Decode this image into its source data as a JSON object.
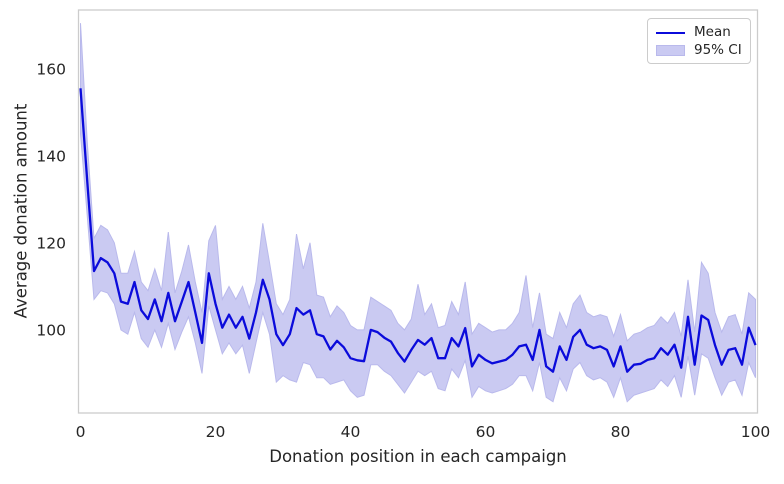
{
  "chart_data": {
    "type": "line",
    "title": "",
    "xlabel": "Donation position in each campaign",
    "ylabel": "Average donation amount",
    "xticks": [
      0,
      20,
      40,
      60,
      80,
      100
    ],
    "yticks": [
      100,
      120,
      140,
      160
    ],
    "xlim": [
      -0.3,
      100.3
    ],
    "ylim": [
      80.9,
      173.5
    ],
    "grid": false,
    "legend": {
      "position": "upper right",
      "mean_label": "Mean",
      "ci_label": "95% CI"
    },
    "colors": {
      "mean_line": "#0b0bdb",
      "ci_fill": "#cacaf2",
      "ci_edge": "#b9b9ec",
      "axis_text": "#262626",
      "spine": "#cccccc",
      "background": "#ffffff"
    },
    "x": [
      0,
      1,
      2,
      3,
      4,
      5,
      6,
      7,
      8,
      9,
      10,
      11,
      12,
      13,
      14,
      15,
      16,
      17,
      18,
      19,
      20,
      21,
      22,
      23,
      24,
      25,
      26,
      27,
      28,
      29,
      30,
      31,
      32,
      33,
      34,
      35,
      36,
      37,
      38,
      39,
      40,
      41,
      42,
      43,
      44,
      45,
      46,
      47,
      48,
      49,
      50,
      51,
      52,
      53,
      54,
      55,
      56,
      57,
      58,
      59,
      60,
      61,
      62,
      63,
      64,
      65,
      66,
      67,
      68,
      69,
      70,
      71,
      72,
      73,
      74,
      75,
      76,
      77,
      78,
      79,
      80,
      81,
      82,
      83,
      84,
      85,
      86,
      87,
      88,
      89,
      90,
      91,
      92,
      93,
      94,
      95,
      96,
      97,
      98,
      99,
      100
    ],
    "series": [
      {
        "name": "Mean",
        "type": "line",
        "values": [
          155.5,
          134.0,
          113.5,
          116.5,
          115.5,
          113.0,
          106.5,
          106.0,
          111.0,
          104.5,
          102.5,
          107.0,
          102.0,
          108.5,
          102.0,
          106.5,
          111.0,
          104.0,
          97.0,
          113.0,
          106.0,
          100.5,
          103.5,
          100.5,
          103.0,
          98.0,
          104.0,
          111.5,
          107.0,
          99.0,
          96.5,
          99.0,
          105.0,
          103.5,
          104.5,
          99.0,
          98.5,
          95.5,
          97.5,
          96.0,
          93.5,
          93.0,
          92.8,
          100.0,
          99.5,
          98.2,
          97.3,
          94.7,
          92.7,
          95.4,
          97.7,
          96.6,
          98.1,
          93.5,
          93.5,
          98.1,
          96.2,
          100.4,
          91.6,
          94.3,
          93.1,
          92.3,
          92.7,
          93.1,
          94.3,
          96.2,
          96.6,
          93.1,
          100.0,
          91.6,
          90.4,
          96.2,
          93.1,
          98.4,
          100.0,
          96.6,
          95.8,
          96.2,
          95.4,
          91.6,
          96.2,
          90.4,
          92.0,
          92.2,
          93.1,
          93.5,
          95.8,
          94.3,
          96.6,
          91.3,
          103.0,
          92.0,
          103.3,
          102.3,
          96.5,
          92.0,
          95.4,
          95.8,
          92.0,
          100.5,
          96.5
        ]
      },
      {
        "name": "95% CI",
        "type": "band",
        "lower": [
          145.0,
          126.0,
          107.0,
          109.0,
          108.5,
          106.0,
          100.0,
          99.0,
          104.0,
          98.0,
          96.0,
          100.0,
          96.0,
          101.5,
          95.5,
          99.5,
          103.0,
          97.0,
          90.0,
          105.5,
          100.0,
          94.5,
          97.0,
          94.5,
          96.5,
          90.0,
          97.0,
          104.0,
          99.0,
          88.0,
          89.5,
          88.5,
          88.0,
          92.5,
          92.0,
          89.0,
          89.0,
          87.5,
          88.0,
          88.5,
          86.0,
          84.5,
          85.0,
          92.0,
          92.0,
          90.5,
          89.5,
          87.5,
          85.5,
          88.0,
          90.5,
          89.5,
          90.5,
          86.5,
          86.0,
          91.0,
          89.0,
          93.0,
          84.5,
          87.0,
          86.0,
          85.5,
          86.0,
          86.5,
          87.5,
          89.5,
          89.5,
          86.0,
          92.5,
          84.5,
          83.5,
          89.0,
          86.0,
          91.0,
          92.5,
          89.5,
          88.5,
          89.0,
          88.0,
          84.5,
          89.0,
          83.5,
          85.0,
          85.5,
          86.0,
          86.5,
          88.5,
          87.0,
          89.5,
          84.5,
          94.0,
          85.0,
          94.5,
          93.5,
          89.0,
          85.0,
          88.0,
          88.5,
          85.0,
          92.5,
          89.0
        ],
        "upper": [
          170.5,
          143.0,
          121.0,
          124.0,
          123.0,
          120.0,
          113.0,
          113.0,
          118.0,
          111.0,
          109.0,
          114.0,
          109.0,
          122.5,
          108.5,
          113.5,
          119.5,
          111.0,
          104.0,
          120.5,
          124.0,
          107.0,
          110.0,
          107.0,
          110.0,
          105.0,
          111.0,
          124.5,
          115.5,
          106.0,
          103.5,
          107.0,
          122.0,
          114.0,
          120.0,
          108.0,
          107.5,
          103.0,
          105.5,
          104.0,
          101.0,
          100.0,
          100.0,
          107.5,
          106.5,
          105.5,
          104.5,
          101.5,
          100.0,
          102.5,
          110.5,
          103.5,
          106.0,
          100.5,
          101.0,
          106.5,
          103.5,
          111.0,
          99.0,
          101.5,
          100.5,
          99.5,
          100.0,
          100.0,
          101.5,
          104.0,
          112.5,
          100.5,
          108.5,
          99.0,
          98.0,
          104.0,
          100.5,
          106.0,
          108.0,
          104.0,
          103.0,
          103.5,
          103.0,
          98.5,
          103.5,
          97.5,
          99.0,
          99.5,
          100.5,
          101.0,
          103.0,
          101.5,
          104.0,
          98.5,
          111.5,
          99.5,
          115.5,
          113.0,
          104.0,
          99.5,
          103.0,
          103.5,
          99.0,
          108.5,
          107.0
        ]
      }
    ]
  }
}
